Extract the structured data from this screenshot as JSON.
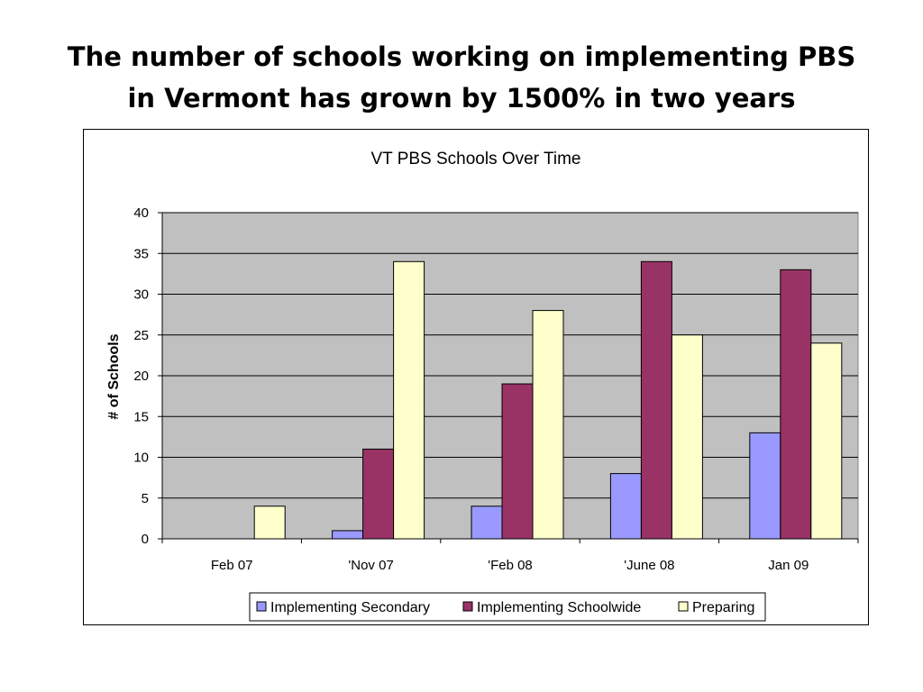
{
  "slide": {
    "title_line1": "The number of schools working on implementing PBS",
    "title_line2": "in Vermont has grown by 1500% in two years"
  },
  "colors": {
    "plot_bg": "#c0c0c0",
    "implementing_secondary": "#9999ff",
    "implementing_schoolwide": "#993366",
    "preparing": "#ffffcc"
  },
  "chart_data": {
    "type": "bar",
    "title": "VT PBS Schools Over Time",
    "xlabel": "",
    "ylabel": "# of Schools",
    "ylim": [
      0,
      40
    ],
    "yticks": [
      0,
      5,
      10,
      15,
      20,
      25,
      30,
      35,
      40
    ],
    "grid": true,
    "legend": "bottom",
    "categories": [
      "Feb 07",
      "'Nov 07",
      "'Feb 08",
      "'June 08",
      "Jan 09"
    ],
    "series": [
      {
        "name": "Implementing Secondary",
        "color": "#9999ff",
        "values": [
          0,
          1,
          4,
          8,
          13
        ]
      },
      {
        "name": "Implementing Schoolwide",
        "color": "#993366",
        "values": [
          0,
          11,
          19,
          34,
          33
        ]
      },
      {
        "name": "Preparing",
        "color": "#ffffcc",
        "values": [
          4,
          34,
          28,
          25,
          24
        ]
      }
    ]
  }
}
